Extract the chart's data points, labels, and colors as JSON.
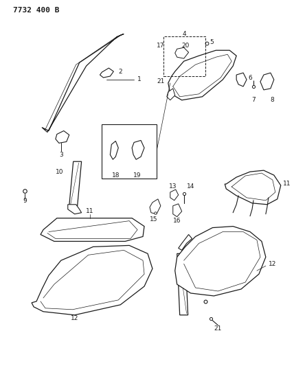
{
  "title": "7732 400 B",
  "bg_color": "#ffffff",
  "line_color": "#1a1a1a",
  "title_fontsize": 8,
  "label_fontsize": 6.5,
  "fig_width": 4.28,
  "fig_height": 5.33,
  "dpi": 100
}
